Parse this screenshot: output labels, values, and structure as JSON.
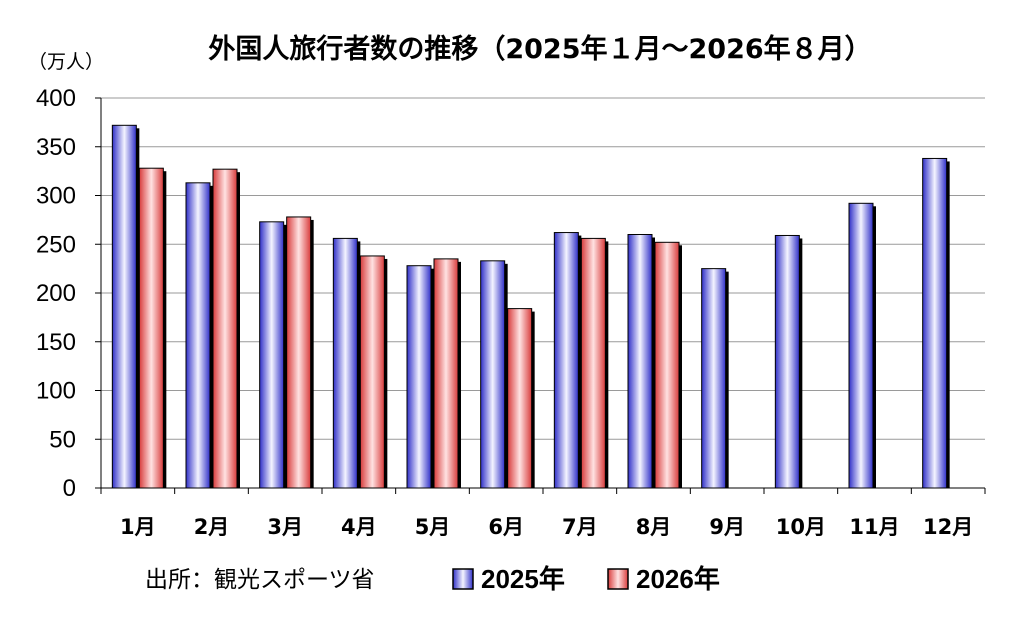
{
  "chart_data": {
    "type": "bar",
    "title": "外国人旅行者数の推移（2025年１月～2026年８月）",
    "unit_label": "（万人）",
    "categories": [
      "1月",
      "2月",
      "3月",
      "4月",
      "5月",
      "6月",
      "7月",
      "8月",
      "9月",
      "10月",
      "11月",
      "12月"
    ],
    "ylim": [
      0,
      400
    ],
    "yticks": [
      "0",
      "50",
      "100",
      "150",
      "200",
      "250",
      "300",
      "350",
      "400"
    ],
    "grid": true,
    "legend_position": "bottom",
    "series": [
      {
        "name": "2025年",
        "color": "#7070e0",
        "values": [
          372,
          313,
          273,
          256,
          228,
          233,
          262,
          260,
          225,
          259,
          292,
          338
        ]
      },
      {
        "name": "2026年",
        "color": "#e87070",
        "values": [
          328,
          327,
          278,
          238,
          235,
          184,
          256,
          252,
          null,
          null,
          null,
          null
        ]
      }
    ]
  },
  "footer": {
    "source": "出所：観光スポーツ省"
  }
}
